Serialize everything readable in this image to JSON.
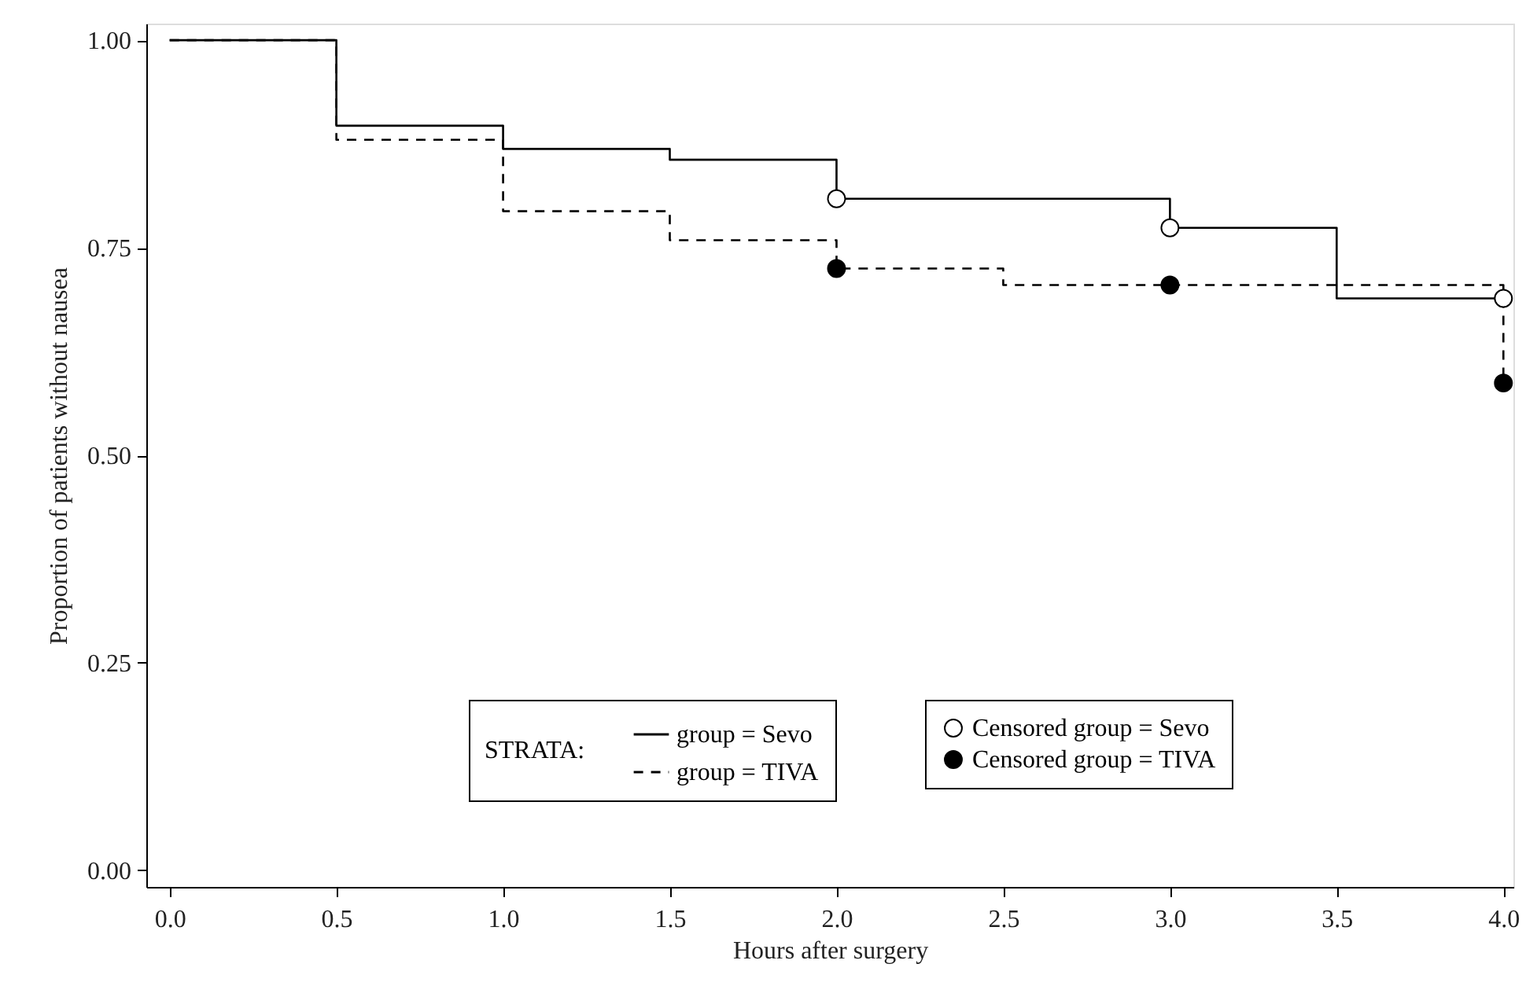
{
  "chart_data": {
    "type": "step",
    "xlabel": "Hours after surgery",
    "ylabel": "Proportion of patients without nausea",
    "legend_title": "STRATA:",
    "series": [
      {
        "name": "group = Sevo",
        "type": "step",
        "color": "#000000",
        "line_style": "solid",
        "x": [
          0,
          0.5,
          1.0,
          1.5,
          2.0,
          3.0,
          3.5,
          4.0
        ],
        "values": [
          1.0,
          0.897,
          0.869,
          0.856,
          0.809,
          0.774,
          0.689,
          0.689
        ]
      },
      {
        "name": "group = TIVA",
        "type": "step",
        "color": "#000000",
        "line_style": "dashed",
        "x": [
          0,
          0.5,
          1.0,
          1.5,
          2.0,
          2.5,
          4.0
        ],
        "values": [
          1.0,
          0.88,
          0.794,
          0.759,
          0.725,
          0.705,
          0.587
        ]
      },
      {
        "name": "Censored group = Sevo",
        "type": "scatter",
        "marker": "circle",
        "color": "#ffffff",
        "x": [
          2.0,
          3.0,
          4.0
        ],
        "values": [
          0.809,
          0.774,
          0.689
        ]
      },
      {
        "name": "Censored group = TIVA",
        "type": "scatter",
        "marker": "circle",
        "color": "#000000",
        "x": [
          2.0,
          3.0,
          4.0
        ],
        "values": [
          0.725,
          0.705,
          0.587
        ]
      }
    ],
    "xlim": [
      -0.07,
      4.03
    ],
    "ylim": [
      -0.02,
      1.02
    ],
    "xticks": [
      {
        "value": 0,
        "label": "0.0"
      },
      {
        "value": 0.5,
        "label": "0.5"
      },
      {
        "value": 1,
        "label": "1.0"
      },
      {
        "value": 1.5,
        "label": "1.5"
      },
      {
        "value": 2,
        "label": "2.0"
      },
      {
        "value": 2.5,
        "label": "2.5"
      },
      {
        "value": 3,
        "label": "3.0"
      },
      {
        "value": 3.5,
        "label": "3.5"
      },
      {
        "value": 4,
        "label": "4.0"
      }
    ],
    "yticks": [
      {
        "value": 0,
        "label": "0.00"
      },
      {
        "value": 0.25,
        "label": "0.25"
      },
      {
        "value": 0.5,
        "label": "0.50"
      },
      {
        "value": 0.75,
        "label": "0.75"
      },
      {
        "value": 1,
        "label": "1.00"
      }
    ],
    "grid": false,
    "legend": "bottom right"
  }
}
